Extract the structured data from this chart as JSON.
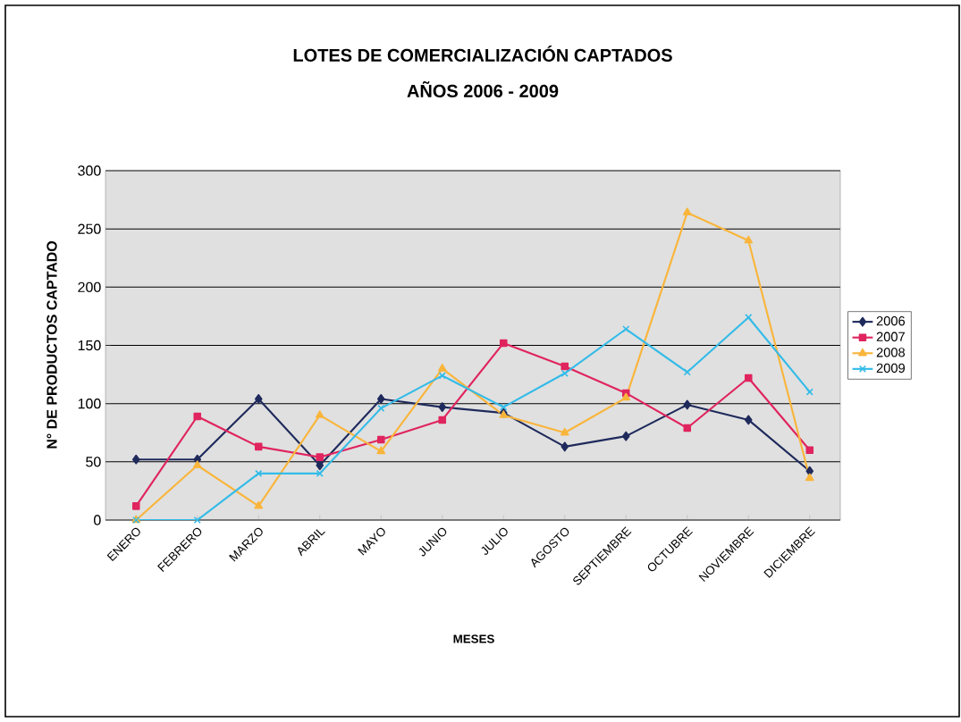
{
  "chart_data": {
    "type": "line",
    "title": "LOTES DE COMERCIALIZACIÓN CAPTADOS",
    "subtitle": "AÑOS 2006 - 2009",
    "xlabel": "MESES",
    "ylabel": "N° DE PRODUCTOS CAPTADO",
    "categories": [
      "ENERO",
      "FEBRERO",
      "MARZO",
      "ABRIL",
      "MAYO",
      "JUNIO",
      "JULIO",
      "AGOSTO",
      "SEPTIEMBRE",
      "OCTUBRE",
      "NOVIEMBRE",
      "DICIEMBRE"
    ],
    "series": [
      {
        "name": "2006",
        "color": "#1f2a5c",
        "marker": "diamond",
        "values": [
          52,
          52,
          104,
          47,
          104,
          97,
          92,
          63,
          72,
          99,
          86,
          42
        ]
      },
      {
        "name": "2007",
        "color": "#e0245e",
        "marker": "square",
        "values": [
          12,
          89,
          63,
          54,
          69,
          86,
          152,
          132,
          109,
          79,
          122,
          60
        ]
      },
      {
        "name": "2008",
        "color": "#f9b53b",
        "marker": "triangle",
        "values": [
          0,
          47,
          12,
          90,
          59,
          130,
          90,
          75,
          105,
          264,
          240,
          36
        ]
      },
      {
        "name": "2009",
        "color": "#33bbe8",
        "marker": "cross",
        "values": [
          0,
          0,
          40,
          40,
          96,
          124,
          97,
          126,
          164,
          127,
          174,
          110
        ]
      }
    ],
    "ylim": [
      0,
      300
    ],
    "yticks": [
      0,
      50,
      100,
      150,
      200,
      250,
      300
    ],
    "grid": "y",
    "legend": "right"
  }
}
